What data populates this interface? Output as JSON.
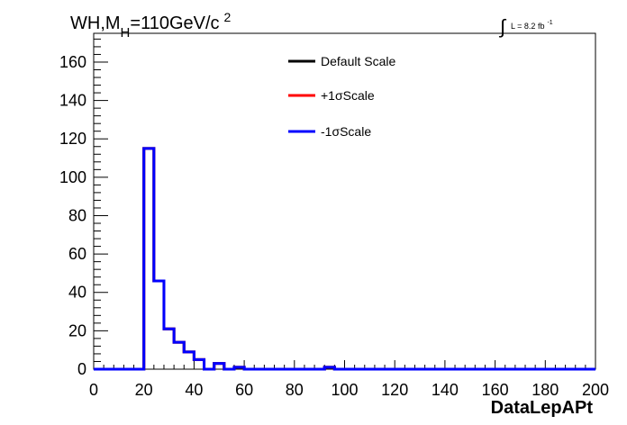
{
  "chart_data": {
    "type": "line",
    "title": "WH,M",
    "title_sub": "H",
    "title_rest": "=110GeV/c",
    "title_sup": "2",
    "lumi_prefix": "L = 8.2 fb",
    "lumi_sup": "-1",
    "xlabel": "DataLepAPt",
    "ylabel": "",
    "xlim": [
      0,
      200
    ],
    "ylim": [
      0,
      175
    ],
    "x_ticks": [
      "0",
      "20",
      "40",
      "60",
      "80",
      "100",
      "120",
      "140",
      "160",
      "180",
      "200"
    ],
    "y_ticks": [
      "0",
      "20",
      "40",
      "60",
      "80",
      "100",
      "120",
      "140",
      "160"
    ],
    "legend_position": "top-center",
    "bin_width": 4,
    "series": [
      {
        "name": "Default Scale",
        "color": "#000000",
        "values": [
          0,
          0,
          0,
          0,
          0,
          115,
          46,
          21,
          14,
          9,
          5,
          0,
          3,
          0,
          1,
          0,
          0,
          0,
          0,
          0,
          0,
          0,
          0,
          1,
          0,
          0,
          0,
          0,
          0,
          0,
          0,
          0,
          0,
          0,
          0,
          0,
          0,
          0,
          0,
          0,
          0,
          0,
          0,
          0,
          0,
          0,
          0,
          0,
          0,
          0
        ]
      },
      {
        "name": "+1σScale",
        "color": "#ff0000",
        "values": [
          0,
          0,
          0,
          0,
          0,
          115,
          46,
          21,
          14,
          9,
          5,
          0,
          3,
          0,
          1,
          0,
          0,
          0,
          0,
          0,
          0,
          0,
          0,
          1,
          0,
          0,
          0,
          0,
          0,
          0,
          0,
          0,
          0,
          0,
          0,
          0,
          0,
          0,
          0,
          0,
          0,
          0,
          0,
          0,
          0,
          0,
          0,
          0,
          0,
          0
        ]
      },
      {
        "name": "-1σScale",
        "color": "#0000ff",
        "values": [
          0,
          0,
          0,
          0,
          0,
          115,
          46,
          21,
          14,
          9,
          5,
          0,
          3,
          0,
          1,
          0,
          0,
          0,
          0,
          0,
          0,
          0,
          0,
          1,
          0,
          0,
          0,
          0,
          0,
          0,
          0,
          0,
          0,
          0,
          0,
          0,
          0,
          0,
          0,
          0,
          0,
          0,
          0,
          0,
          0,
          0,
          0,
          0,
          0,
          0
        ]
      }
    ]
  }
}
